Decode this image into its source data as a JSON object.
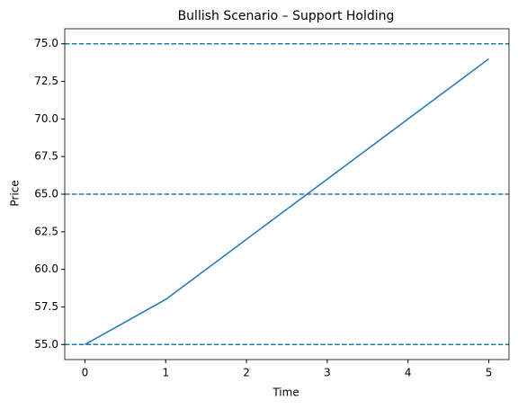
{
  "chart_data": {
    "type": "line",
    "title": "Bullish Scenario – Support Holding",
    "x_label": "Time",
    "y_label": "Price",
    "x": [
      0,
      1,
      2,
      3,
      4,
      5
    ],
    "series": [
      {
        "name": "Price",
        "color": "#1f77b4",
        "values": [
          55,
          58,
          62,
          66,
          70,
          74
        ]
      }
    ],
    "hlines": [
      55,
      65,
      75
    ],
    "hline_color": "#1f77b4",
    "xlim": [
      -0.25,
      5.25
    ],
    "ylim": [
      54,
      76
    ],
    "xticks": [
      0,
      1,
      2,
      3,
      4,
      5
    ],
    "yticks": [
      {
        "value": 55,
        "label": "55.0"
      },
      {
        "value": 57.5,
        "label": "57.5"
      },
      {
        "value": 60,
        "label": "60.0"
      },
      {
        "value": 62.5,
        "label": "62.5"
      },
      {
        "value": 65,
        "label": "65.0"
      },
      {
        "value": 67.5,
        "label": "67.5"
      },
      {
        "value": 70,
        "label": "70.0"
      },
      {
        "value": 72.5,
        "label": "72.5"
      },
      {
        "value": 75,
        "label": "75.0"
      }
    ],
    "grid": false
  }
}
